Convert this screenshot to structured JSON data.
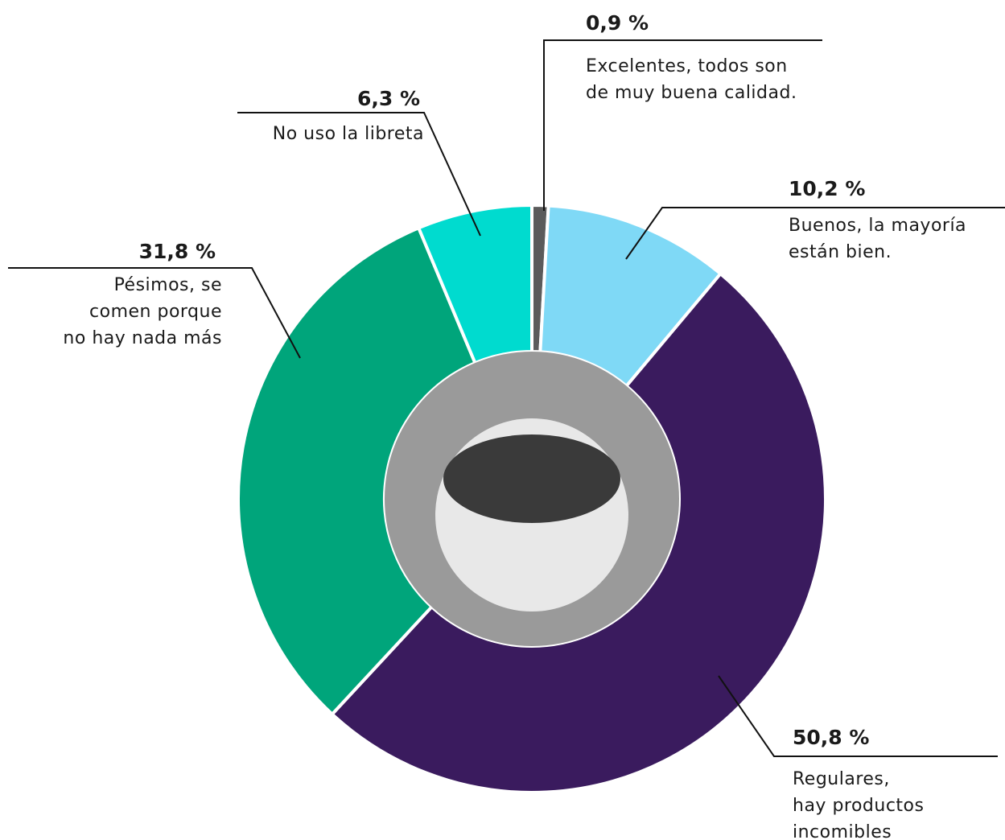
{
  "chart_data": {
    "type": "donut",
    "categories": [
      "Excelentes, todos son\nde muy buena calidad.",
      "Buenos, la mayoría\nestán bien.",
      "Regulares,\nhay productos\nincomibles",
      "Pésimos, se\ncomen porque\nno hay nada más",
      "No uso la libreta"
    ],
    "values": [
      0.9,
      10.2,
      50.8,
      31.8,
      6.3
    ],
    "value_labels": [
      "0,9 %",
      "10,2 %",
      "50,8 %",
      "31,8 %",
      "6,3 %"
    ],
    "colors": [
      "#5b5b5b",
      "#7fd9f6",
      "#3a1b5e",
      "#00a57b",
      "#00dbcf"
    ]
  }
}
